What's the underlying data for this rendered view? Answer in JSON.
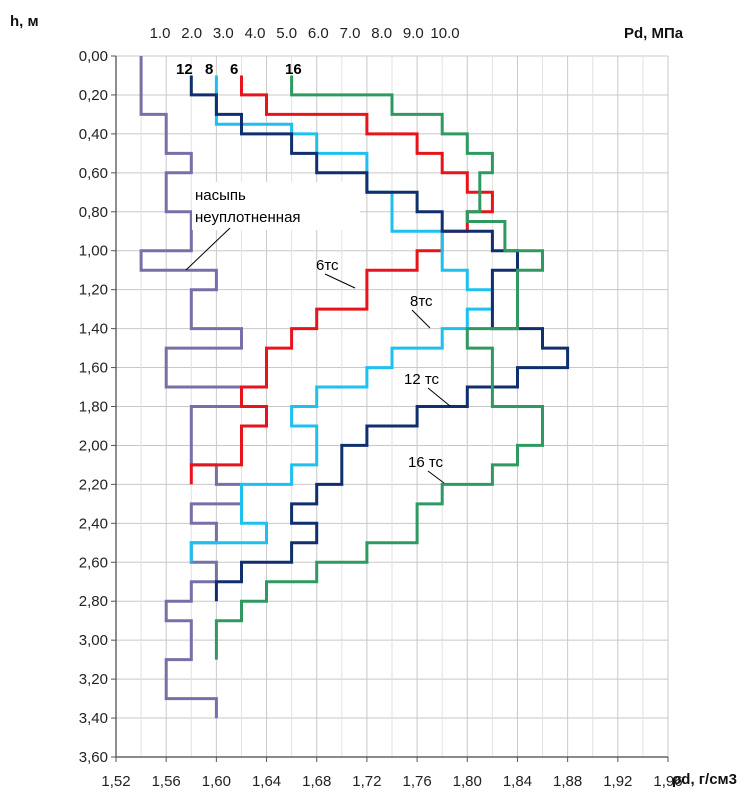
{
  "chart_data": {
    "type": "line",
    "y_title": "h, м",
    "x_bottom_title": "ρd, г/см3",
    "x_top_title": "Pd, МПа",
    "x_bottom_ticks": [
      "1,52",
      "1,56",
      "1,60",
      "1,64",
      "1,68",
      "1,72",
      "1,76",
      "1,80",
      "1,84",
      "1,88",
      "1,92",
      "1,96"
    ],
    "x_top_ticks": [
      "1.0",
      "2.0",
      "3.0",
      "4.0",
      "5.0",
      "6.0",
      "7.0",
      "8.0",
      "9.0",
      "10.0"
    ],
    "y_ticks": [
      "0,00",
      "0,20",
      "0,40",
      "0,60",
      "0,80",
      "1,00",
      "1,20",
      "1,40",
      "1,60",
      "1,80",
      "2,00",
      "2,20",
      "2,40",
      "2,60",
      "2,80",
      "3,00",
      "3,20",
      "3,40",
      "3,60"
    ],
    "xlim": [
      1.52,
      1.96
    ],
    "ylim": [
      0,
      3.6
    ],
    "grid": true,
    "series": [
      {
        "name": "насыпь неуплотненная",
        "color": "#7570a8",
        "points": [
          [
            1.54,
            0
          ],
          [
            1.54,
            0.3
          ],
          [
            1.56,
            0.3
          ],
          [
            1.56,
            0.5
          ],
          [
            1.58,
            0.5
          ],
          [
            1.58,
            0.6
          ],
          [
            1.56,
            0.6
          ],
          [
            1.56,
            0.8
          ],
          [
            1.58,
            0.8
          ],
          [
            1.58,
            1.0
          ],
          [
            1.54,
            1.0
          ],
          [
            1.54,
            1.1
          ],
          [
            1.6,
            1.1
          ],
          [
            1.6,
            1.2
          ],
          [
            1.58,
            1.2
          ],
          [
            1.58,
            1.4
          ],
          [
            1.62,
            1.4
          ],
          [
            1.62,
            1.5
          ],
          [
            1.56,
            1.5
          ],
          [
            1.56,
            1.7
          ],
          [
            1.62,
            1.7
          ],
          [
            1.62,
            1.8
          ],
          [
            1.58,
            1.8
          ],
          [
            1.58,
            2.1
          ],
          [
            1.6,
            2.1
          ],
          [
            1.6,
            2.2
          ],
          [
            1.62,
            2.2
          ],
          [
            1.62,
            2.3
          ],
          [
            1.58,
            2.3
          ],
          [
            1.58,
            2.4
          ],
          [
            1.6,
            2.4
          ],
          [
            1.6,
            2.5
          ],
          [
            1.58,
            2.5
          ],
          [
            1.58,
            2.6
          ],
          [
            1.6,
            2.6
          ],
          [
            1.6,
            2.7
          ],
          [
            1.58,
            2.7
          ],
          [
            1.58,
            2.8
          ],
          [
            1.56,
            2.8
          ],
          [
            1.56,
            2.9
          ],
          [
            1.58,
            2.9
          ],
          [
            1.58,
            3.1
          ],
          [
            1.56,
            3.1
          ],
          [
            1.56,
            3.3
          ],
          [
            1.6,
            3.3
          ],
          [
            1.6,
            3.4
          ]
        ]
      },
      {
        "name": "6тс",
        "color": "#e8141b",
        "points": [
          [
            1.62,
            0.1
          ],
          [
            1.62,
            0.2
          ],
          [
            1.64,
            0.2
          ],
          [
            1.64,
            0.3
          ],
          [
            1.72,
            0.3
          ],
          [
            1.72,
            0.4
          ],
          [
            1.76,
            0.4
          ],
          [
            1.76,
            0.5
          ],
          [
            1.78,
            0.5
          ],
          [
            1.78,
            0.6
          ],
          [
            1.8,
            0.6
          ],
          [
            1.8,
            0.7
          ],
          [
            1.82,
            0.7
          ],
          [
            1.82,
            0.8
          ],
          [
            1.8,
            0.8
          ],
          [
            1.8,
            0.9
          ],
          [
            1.78,
            0.9
          ],
          [
            1.78,
            1.0
          ],
          [
            1.76,
            1.0
          ],
          [
            1.76,
            1.1
          ],
          [
            1.72,
            1.1
          ],
          [
            1.72,
            1.3
          ],
          [
            1.68,
            1.3
          ],
          [
            1.68,
            1.4
          ],
          [
            1.66,
            1.4
          ],
          [
            1.66,
            1.5
          ],
          [
            1.64,
            1.5
          ],
          [
            1.64,
            1.7
          ],
          [
            1.62,
            1.7
          ],
          [
            1.62,
            1.8
          ],
          [
            1.64,
            1.8
          ],
          [
            1.64,
            1.9
          ],
          [
            1.62,
            1.9
          ],
          [
            1.62,
            2.1
          ],
          [
            1.58,
            2.1
          ],
          [
            1.58,
            2.2
          ]
        ]
      },
      {
        "name": "8тс",
        "color": "#1ec0f0",
        "points": [
          [
            1.6,
            0.1
          ],
          [
            1.6,
            0.3
          ],
          [
            1.6,
            0.35
          ],
          [
            1.66,
            0.35
          ],
          [
            1.66,
            0.4
          ],
          [
            1.68,
            0.4
          ],
          [
            1.68,
            0.5
          ],
          [
            1.72,
            0.5
          ],
          [
            1.72,
            0.7
          ],
          [
            1.74,
            0.7
          ],
          [
            1.74,
            0.9
          ],
          [
            1.78,
            0.9
          ],
          [
            1.78,
            1.1
          ],
          [
            1.8,
            1.1
          ],
          [
            1.8,
            1.2
          ],
          [
            1.82,
            1.2
          ],
          [
            1.82,
            1.3
          ],
          [
            1.8,
            1.3
          ],
          [
            1.8,
            1.4
          ],
          [
            1.78,
            1.4
          ],
          [
            1.78,
            1.5
          ],
          [
            1.74,
            1.5
          ],
          [
            1.74,
            1.6
          ],
          [
            1.72,
            1.6
          ],
          [
            1.72,
            1.7
          ],
          [
            1.68,
            1.7
          ],
          [
            1.68,
            1.8
          ],
          [
            1.66,
            1.8
          ],
          [
            1.66,
            1.9
          ],
          [
            1.68,
            1.9
          ],
          [
            1.68,
            2.1
          ],
          [
            1.66,
            2.1
          ],
          [
            1.66,
            2.2
          ],
          [
            1.62,
            2.2
          ],
          [
            1.62,
            2.4
          ],
          [
            1.64,
            2.4
          ],
          [
            1.64,
            2.5
          ],
          [
            1.58,
            2.5
          ],
          [
            1.58,
            2.6
          ]
        ]
      },
      {
        "name": "12тс",
        "color": "#0f2f6e",
        "points": [
          [
            1.58,
            0.1
          ],
          [
            1.58,
            0.2
          ],
          [
            1.6,
            0.2
          ],
          [
            1.6,
            0.3
          ],
          [
            1.62,
            0.3
          ],
          [
            1.62,
            0.4
          ],
          [
            1.66,
            0.4
          ],
          [
            1.66,
            0.5
          ],
          [
            1.68,
            0.5
          ],
          [
            1.68,
            0.6
          ],
          [
            1.72,
            0.6
          ],
          [
            1.72,
            0.7
          ],
          [
            1.76,
            0.7
          ],
          [
            1.76,
            0.8
          ],
          [
            1.78,
            0.8
          ],
          [
            1.78,
            0.9
          ],
          [
            1.82,
            0.9
          ],
          [
            1.82,
            1.0
          ],
          [
            1.84,
            1.0
          ],
          [
            1.84,
            1.1
          ],
          [
            1.82,
            1.1
          ],
          [
            1.82,
            1.4
          ],
          [
            1.86,
            1.4
          ],
          [
            1.86,
            1.5
          ],
          [
            1.88,
            1.5
          ],
          [
            1.88,
            1.6
          ],
          [
            1.84,
            1.6
          ],
          [
            1.84,
            1.7
          ],
          [
            1.8,
            1.7
          ],
          [
            1.8,
            1.8
          ],
          [
            1.76,
            1.8
          ],
          [
            1.76,
            1.9
          ],
          [
            1.72,
            1.9
          ],
          [
            1.72,
            2.0
          ],
          [
            1.7,
            2.0
          ],
          [
            1.7,
            2.2
          ],
          [
            1.68,
            2.2
          ],
          [
            1.68,
            2.3
          ],
          [
            1.66,
            2.3
          ],
          [
            1.66,
            2.4
          ],
          [
            1.68,
            2.4
          ],
          [
            1.68,
            2.5
          ],
          [
            1.66,
            2.5
          ],
          [
            1.66,
            2.6
          ],
          [
            1.62,
            2.6
          ],
          [
            1.62,
            2.7
          ],
          [
            1.6,
            2.7
          ],
          [
            1.6,
            2.8
          ]
        ]
      },
      {
        "name": "16тс",
        "color": "#2e9a62",
        "points": [
          [
            1.66,
            0.1
          ],
          [
            1.66,
            0.2
          ],
          [
            1.74,
            0.2
          ],
          [
            1.74,
            0.3
          ],
          [
            1.78,
            0.3
          ],
          [
            1.78,
            0.4
          ],
          [
            1.8,
            0.4
          ],
          [
            1.8,
            0.5
          ],
          [
            1.82,
            0.5
          ],
          [
            1.82,
            0.6
          ],
          [
            1.81,
            0.6
          ],
          [
            1.81,
            0.8
          ],
          [
            1.8,
            0.8
          ],
          [
            1.8,
            0.85
          ],
          [
            1.83,
            0.85
          ],
          [
            1.83,
            1.0
          ],
          [
            1.86,
            1.0
          ],
          [
            1.86,
            1.1
          ],
          [
            1.84,
            1.1
          ],
          [
            1.84,
            1.4
          ],
          [
            1.8,
            1.4
          ],
          [
            1.8,
            1.5
          ],
          [
            1.82,
            1.5
          ],
          [
            1.82,
            1.8
          ],
          [
            1.86,
            1.8
          ],
          [
            1.86,
            2.0
          ],
          [
            1.84,
            2.0
          ],
          [
            1.84,
            2.1
          ],
          [
            1.82,
            2.1
          ],
          [
            1.82,
            2.2
          ],
          [
            1.78,
            2.2
          ],
          [
            1.78,
            2.3
          ],
          [
            1.76,
            2.3
          ],
          [
            1.76,
            2.5
          ],
          [
            1.72,
            2.5
          ],
          [
            1.72,
            2.6
          ],
          [
            1.68,
            2.6
          ],
          [
            1.68,
            2.7
          ],
          [
            1.64,
            2.7
          ],
          [
            1.64,
            2.8
          ],
          [
            1.62,
            2.8
          ],
          [
            1.62,
            2.9
          ],
          [
            1.6,
            2.9
          ],
          [
            1.6,
            3.1
          ]
        ]
      }
    ],
    "annotations": {
      "top_labels": [
        "12",
        "8",
        "6",
        "16"
      ],
      "fill_label_line1": "насыпь",
      "fill_label_line2": "неуплотненная",
      "label_6": "6тс",
      "label_8": "8тс",
      "label_12": "12 тс",
      "label_16": "16 тс"
    }
  }
}
